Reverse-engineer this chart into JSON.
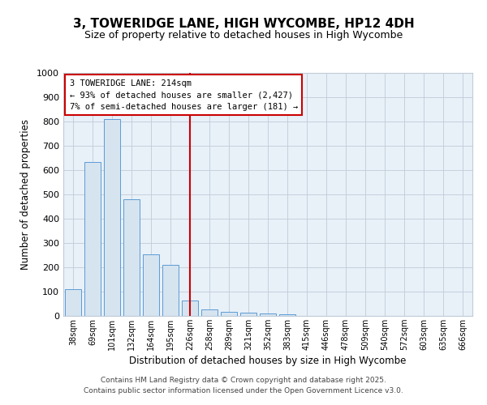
{
  "title": "3, TOWERIDGE LANE, HIGH WYCOMBE, HP12 4DH",
  "subtitle": "Size of property relative to detached houses in High Wycombe",
  "xlabel": "Distribution of detached houses by size in High Wycombe",
  "ylabel": "Number of detached properties",
  "bar_labels": [
    "38sqm",
    "69sqm",
    "101sqm",
    "132sqm",
    "164sqm",
    "195sqm",
    "226sqm",
    "258sqm",
    "289sqm",
    "321sqm",
    "352sqm",
    "383sqm",
    "415sqm",
    "446sqm",
    "478sqm",
    "509sqm",
    "540sqm",
    "572sqm",
    "603sqm",
    "635sqm",
    "666sqm"
  ],
  "bar_values": [
    110,
    635,
    810,
    480,
    255,
    210,
    65,
    28,
    18,
    12,
    10,
    8,
    0,
    0,
    0,
    0,
    0,
    0,
    0,
    0,
    0
  ],
  "bar_color": "#d6e4f0",
  "bar_edge_color": "#5b9bd5",
  "vline_x": 6.0,
  "vline_color": "#cc0000",
  "ylim": [
    0,
    1000
  ],
  "yticks": [
    0,
    100,
    200,
    300,
    400,
    500,
    600,
    700,
    800,
    900,
    1000
  ],
  "annotation_title": "3 TOWERIDGE LANE: 214sqm",
  "annotation_line1": "← 93% of detached houses are smaller (2,427)",
  "annotation_line2": "7% of semi-detached houses are larger (181) →",
  "annotation_box_color": "#ffffff",
  "annotation_box_edge": "#cc0000",
  "footer1": "Contains HM Land Registry data © Crown copyright and database right 2025.",
  "footer2": "Contains public sector information licensed under the Open Government Licence v3.0.",
  "background_color": "#ffffff",
  "plot_bg_color": "#e8f0f8",
  "grid_color": "#c0ccd8"
}
